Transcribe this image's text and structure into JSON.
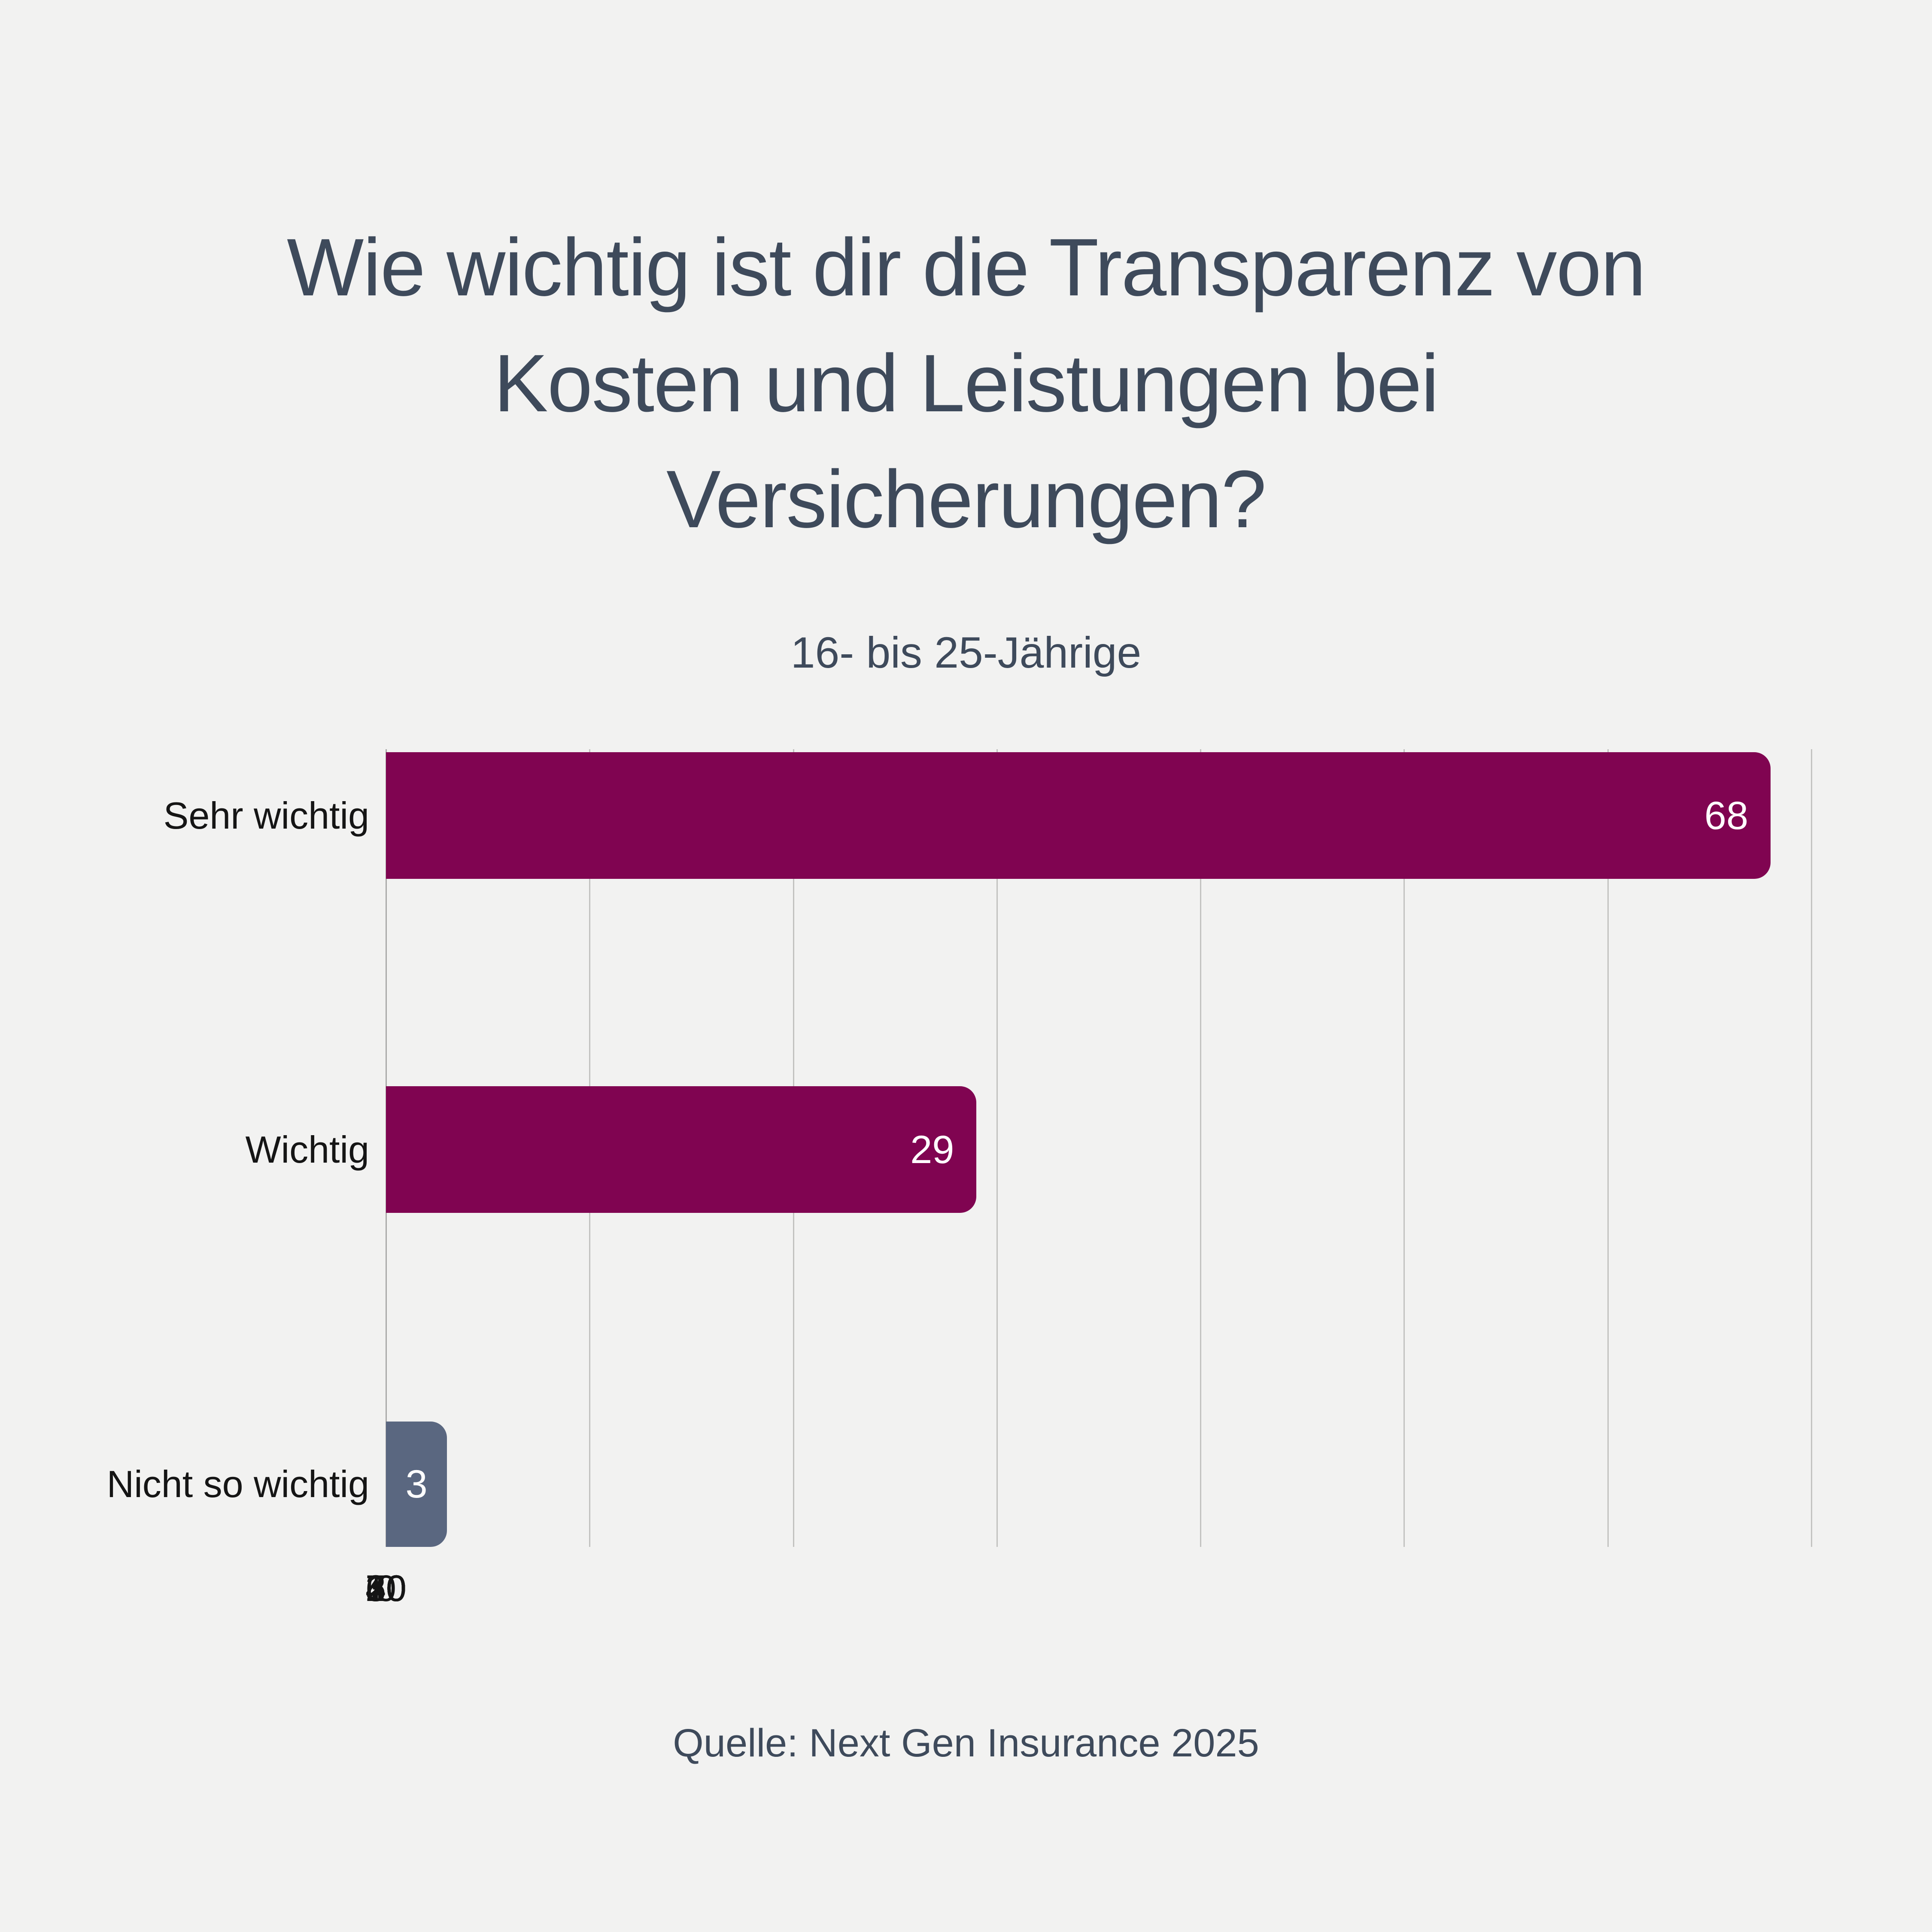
{
  "chart_data": {
    "type": "bar",
    "orientation": "horizontal",
    "title": "Wie wichtig ist dir die Transparenz von\nKosten und Leistungen bei\nVersicherungen?",
    "subtitle": "16- bis 25-Jährige",
    "source": "Quelle: Next Gen Insurance 2025",
    "categories": [
      "Sehr wichtig",
      "Wichtig",
      "Nicht so wichtig"
    ],
    "values": [
      68,
      29,
      3
    ],
    "value_labels": [
      "68",
      "29",
      "3"
    ],
    "bar_colors": [
      "#800451",
      "#800451",
      "#5a6780"
    ],
    "xlim": [
      0,
      70
    ],
    "xticks": [
      "0",
      "10",
      "20",
      "30",
      "40",
      "50",
      "60",
      "70"
    ],
    "grid": "vertical",
    "legend": "none"
  },
  "colors": {
    "background": "#f2f2f1",
    "title_text": "#3e4a5b",
    "axis_text": "#151515",
    "value_text": "#ffffff",
    "gridline": "#c2c2c0",
    "accent_magenta": "#800451",
    "accent_slate": "#5a6780"
  }
}
